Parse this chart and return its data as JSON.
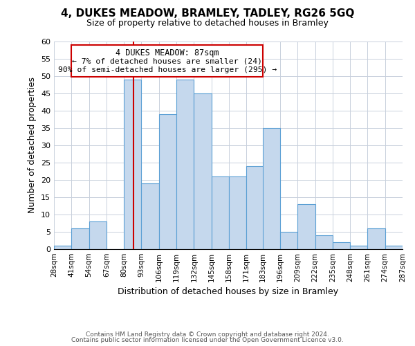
{
  "title": "4, DUKES MEADOW, BRAMLEY, TADLEY, RG26 5GQ",
  "subtitle": "Size of property relative to detached houses in Bramley",
  "xlabel": "Distribution of detached houses by size in Bramley",
  "ylabel": "Number of detached properties",
  "bin_edges": [
    28,
    41,
    54,
    67,
    80,
    93,
    106,
    119,
    132,
    145,
    158,
    171,
    183,
    196,
    209,
    222,
    235,
    248,
    261,
    274,
    287
  ],
  "counts": [
    1,
    6,
    8,
    0,
    49,
    19,
    39,
    49,
    45,
    21,
    21,
    24,
    35,
    5,
    13,
    4,
    2,
    1,
    6,
    1
  ],
  "bar_color": "#c5d8ed",
  "bar_edge_color": "#5a9fd4",
  "vline_x": 87,
  "vline_color": "#cc0000",
  "ylim": [
    0,
    60
  ],
  "yticks": [
    0,
    5,
    10,
    15,
    20,
    25,
    30,
    35,
    40,
    45,
    50,
    55,
    60
  ],
  "xtick_labels": [
    "28sqm",
    "41sqm",
    "54sqm",
    "67sqm",
    "80sqm",
    "93sqm",
    "106sqm",
    "119sqm",
    "132sqm",
    "145sqm",
    "158sqm",
    "171sqm",
    "183sqm",
    "196sqm",
    "209sqm",
    "222sqm",
    "235sqm",
    "248sqm",
    "261sqm",
    "274sqm",
    "287sqm"
  ],
  "annotation_title": "4 DUKES MEADOW: 87sqm",
  "annotation_line1": "← 7% of detached houses are smaller (24)",
  "annotation_line2": "90% of semi-detached houses are larger (295) →",
  "annotation_box_color": "#ffffff",
  "annotation_box_edge": "#cc0000",
  "footer1": "Contains HM Land Registry data © Crown copyright and database right 2024.",
  "footer2": "Contains public sector information licensed under the Open Government Licence v3.0.",
  "background_color": "#ffffff",
  "grid_color": "#c8d0dc"
}
